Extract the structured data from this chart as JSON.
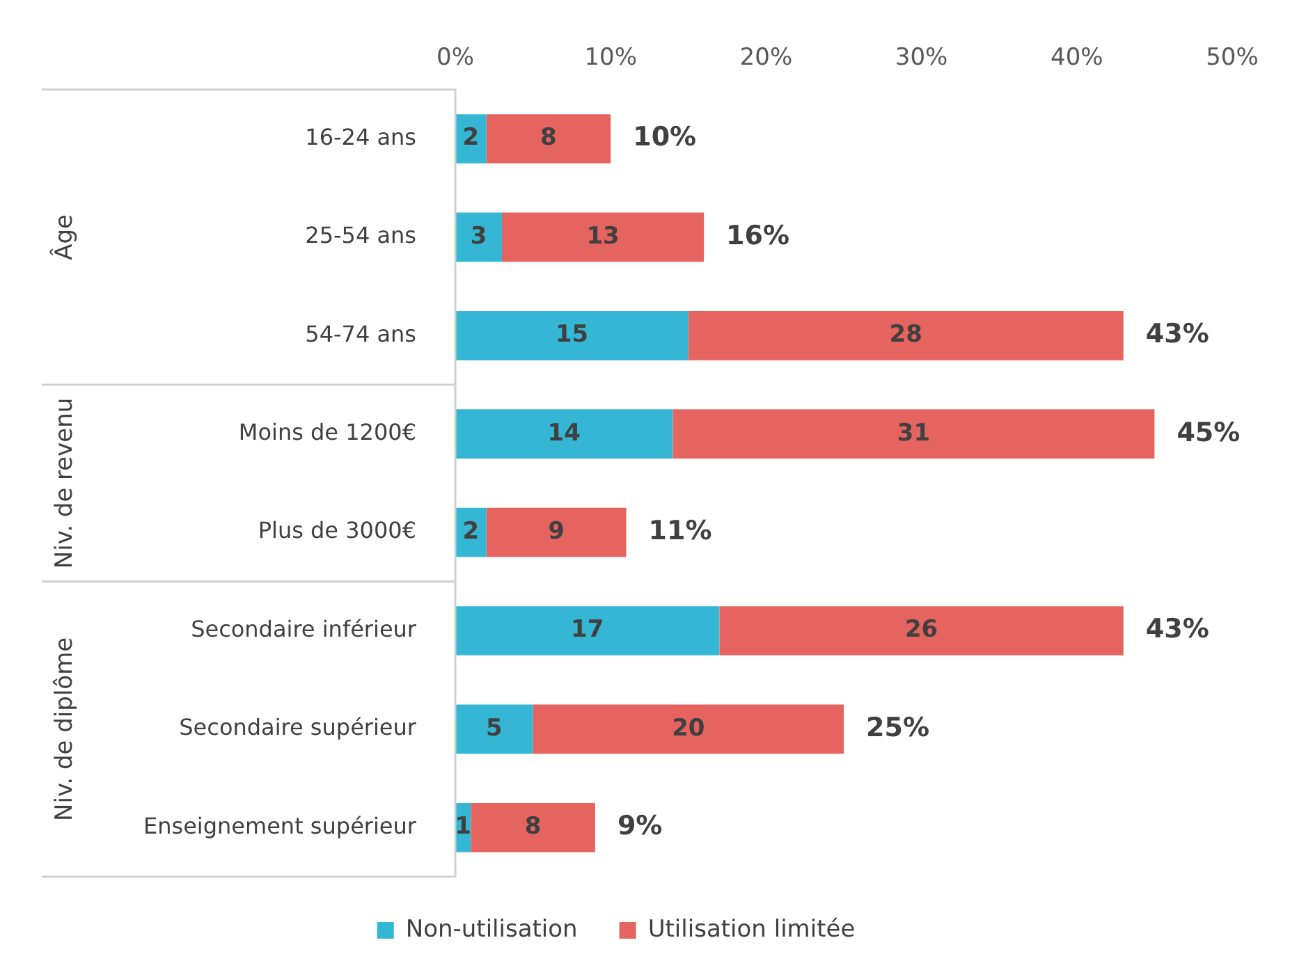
{
  "chart_data": {
    "type": "bar",
    "orientation": "horizontal",
    "stacked": true,
    "categories": [
      "16-24 ans",
      "25-54 ans",
      "54-74 ans",
      "Moins de 1200€",
      "Plus de 3000€",
      "Secondaire inférieur",
      "Secondaire supérieur",
      "Enseignement supérieur"
    ],
    "series": [
      {
        "name": "Non-utilisation",
        "color": "#35b6d4",
        "values": [
          2,
          3,
          15,
          14,
          2,
          17,
          5,
          1
        ]
      },
      {
        "name": "Utilisation limitée",
        "color": "#e66460",
        "values": [
          8,
          13,
          28,
          31,
          9,
          26,
          20,
          8
        ]
      }
    ],
    "totals": [
      "10%",
      "16%",
      "43%",
      "45%",
      "11%",
      "43%",
      "25%",
      "9%"
    ],
    "data_labels": true,
    "xlim": [
      0,
      50
    ],
    "xticks": [
      {
        "value": 0,
        "label": "0%"
      },
      {
        "value": 10,
        "label": "10%"
      },
      {
        "value": 20,
        "label": "20%"
      },
      {
        "value": 30,
        "label": "30%"
      },
      {
        "value": 40,
        "label": "40%"
      },
      {
        "value": 50,
        "label": "50%"
      }
    ],
    "annotations": [
      "Âge",
      "Niv. de revenu",
      "Niv. de diplôme"
    ],
    "grid": false,
    "legend": "bottom"
  }
}
